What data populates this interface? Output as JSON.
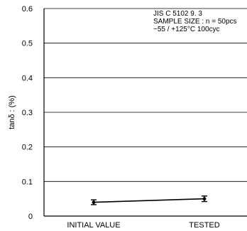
{
  "chart_data": {
    "type": "line",
    "title": "",
    "xlabel": "",
    "ylabel": "tanδ : (%)",
    "categories": [
      "INITIAL VALUE",
      "TESTED"
    ],
    "ylim": [
      0,
      0.6
    ],
    "yticks": [
      "0",
      "0.1",
      "0.2",
      "0.3",
      "0.4",
      "0.5",
      "0.6"
    ],
    "grid": true,
    "series": [
      {
        "values": [
          0.04,
          0.05
        ],
        "error_low": [
          0.033,
          0.042
        ],
        "error_high": [
          0.047,
          0.058
        ]
      }
    ],
    "annotations": [
      "JIS C 5102 9. 3",
      "SAMPLE SIZE : n = 50pcs",
      "−55 / +125°C 100cyc"
    ]
  }
}
